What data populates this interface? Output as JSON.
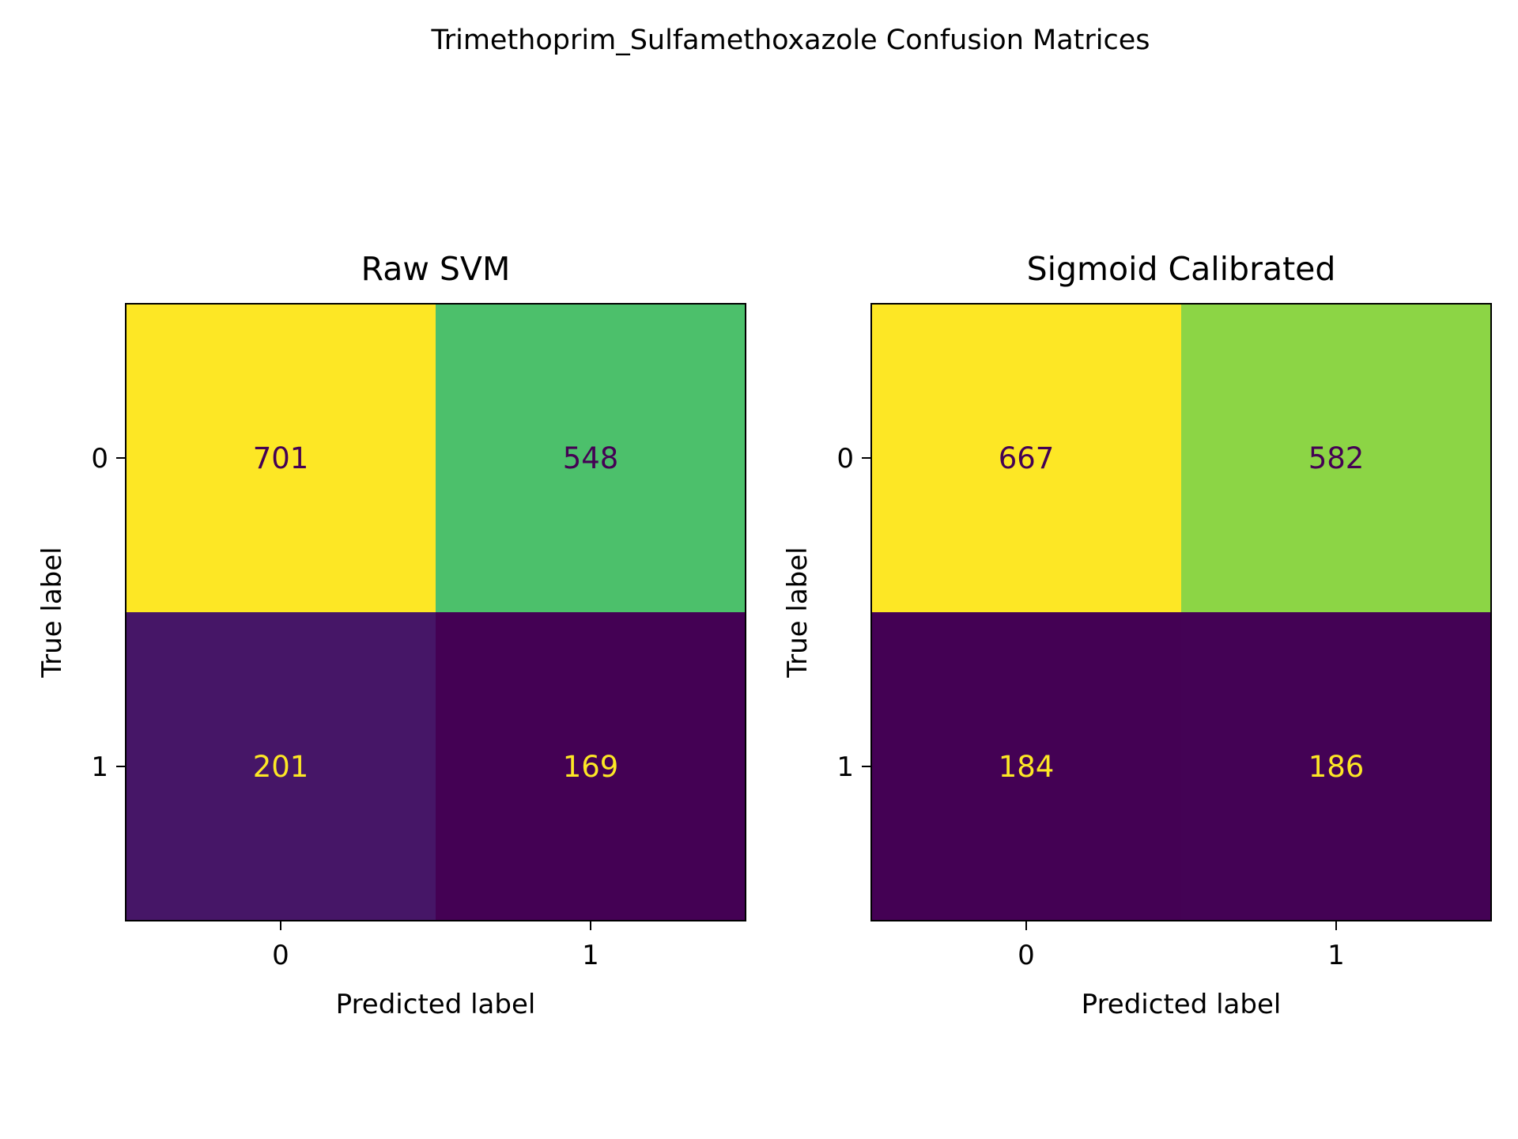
{
  "figure": {
    "title": "Trimethoprim_Sulfamethoxazole Confusion Matrices"
  },
  "chart_data": [
    {
      "type": "heatmap",
      "title": "Raw SVM",
      "xlabel": "Predicted label",
      "ylabel": "True label",
      "x_categories": [
        "0",
        "1"
      ],
      "y_categories": [
        "0",
        "1"
      ],
      "values": [
        [
          701,
          548
        ],
        [
          201,
          169
        ]
      ],
      "colormap": "viridis",
      "grid": false
    },
    {
      "type": "heatmap",
      "title": "Sigmoid Calibrated",
      "xlabel": "Predicted label",
      "ylabel": "True label",
      "x_categories": [
        "0",
        "1"
      ],
      "y_categories": [
        "0",
        "1"
      ],
      "values": [
        [
          667,
          582
        ],
        [
          184,
          186
        ]
      ],
      "colormap": "viridis",
      "grid": false
    }
  ]
}
